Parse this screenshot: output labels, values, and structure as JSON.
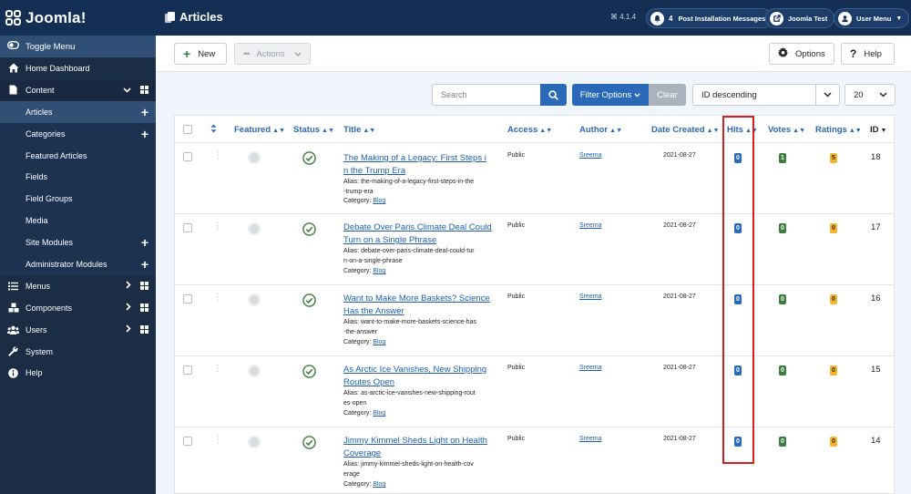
{
  "header": {
    "logo_text": "Joomla!",
    "page_title": "Articles",
    "version": "4.1.4",
    "notifications_count": "4",
    "post_install_label": "Post Installation Messages",
    "site_label": "Joomla Test",
    "user_menu_label": "User Menu"
  },
  "sidebar": {
    "toggle_label": "Toggle Menu",
    "items": [
      {
        "label": "Home Dashboard"
      },
      {
        "label": "Content"
      },
      {
        "label": "Articles"
      },
      {
        "label": "Categories"
      },
      {
        "label": "Featured Articles"
      },
      {
        "label": "Fields"
      },
      {
        "label": "Field Groups"
      },
      {
        "label": "Media"
      },
      {
        "label": "Site Modules"
      },
      {
        "label": "Administrator Modules"
      },
      {
        "label": "Menus"
      },
      {
        "label": "Components"
      },
      {
        "label": "Users"
      },
      {
        "label": "System"
      },
      {
        "label": "Help"
      }
    ]
  },
  "toolbar": {
    "new_label": "New",
    "actions_label": "Actions",
    "options_label": "Options",
    "help_label": "Help"
  },
  "filters": {
    "search_placeholder": "Search",
    "filter_options_label": "Filter Options",
    "clear_label": "Clear",
    "ordering_value": "ID descending",
    "limit_value": "20"
  },
  "table": {
    "headers": {
      "featured": "Featured",
      "status": "Status",
      "title": "Title",
      "access": "Access",
      "author": "Author",
      "date_created": "Date Created",
      "hits": "Hits",
      "votes": "Votes",
      "ratings": "Ratings",
      "id": "ID"
    },
    "alias_prefix": "Alias:",
    "category_prefix": "Category:",
    "rows": [
      {
        "title_line1": "The Making of a Legacy: First Steps i",
        "title_line2": "n the Trump Era",
        "alias_line1": "the-making-of-a-legacy-first-steps-in-the",
        "alias_line2": "-trump-era",
        "category": "Blog",
        "access": "Public",
        "author": "Sreema",
        "date": "2021-08-27",
        "hits": "0",
        "votes": "1",
        "ratings": "5",
        "id": "18"
      },
      {
        "title_line1": "Debate Over Paris Climate Deal Could",
        "title_line2": "Turn on a Single Phrase",
        "alias_line1": "debate-over-paris-climate-deal-could-tur",
        "alias_line2": "n-on-a-single-phrase",
        "category": "Blog",
        "access": "Public",
        "author": "Sreema",
        "date": "2021-08-27",
        "hits": "0",
        "votes": "0",
        "ratings": "0",
        "id": "17"
      },
      {
        "title_line1": "Want to Make More Baskets? Science",
        "title_line2": "Has the Answer",
        "alias_line1": "want-to-make-more-baskets-science-has",
        "alias_line2": "-the-answer",
        "category": "Blog",
        "access": "Public",
        "author": "Sreema",
        "date": "2021-08-27",
        "hits": "0",
        "votes": "0",
        "ratings": "0",
        "id": "16"
      },
      {
        "title_line1": "As Arctic Ice Vanishes, New Shipping",
        "title_line2": "Routes Open",
        "alias_line1": "as-arctic-ice-vanishes-new-shipping-rout",
        "alias_line2": "es-open",
        "category": "Blog",
        "access": "Public",
        "author": "Sreema",
        "date": "2021-08-27",
        "hits": "0",
        "votes": "0",
        "ratings": "0",
        "id": "15"
      },
      {
        "title_line1": "Jimmy Kimmel Sheds Light on Health",
        "title_line2": "Coverage",
        "alias_line1": "jimmy-kimmel-sheds-light-on-health-cov",
        "alias_line2": "erage",
        "category": "Blog",
        "access": "Public",
        "author": "Sreema",
        "date": "2021-08-27",
        "hits": "0",
        "votes": "0",
        "ratings": "0",
        "id": "14"
      }
    ]
  },
  "colors": {
    "header_bg": "#132f53",
    "sidebar_bg": "#1b2d45",
    "primary": "#2a69b8",
    "success": "#3b7d3c",
    "warning": "#f5b42a",
    "highlight": "#d42020"
  }
}
